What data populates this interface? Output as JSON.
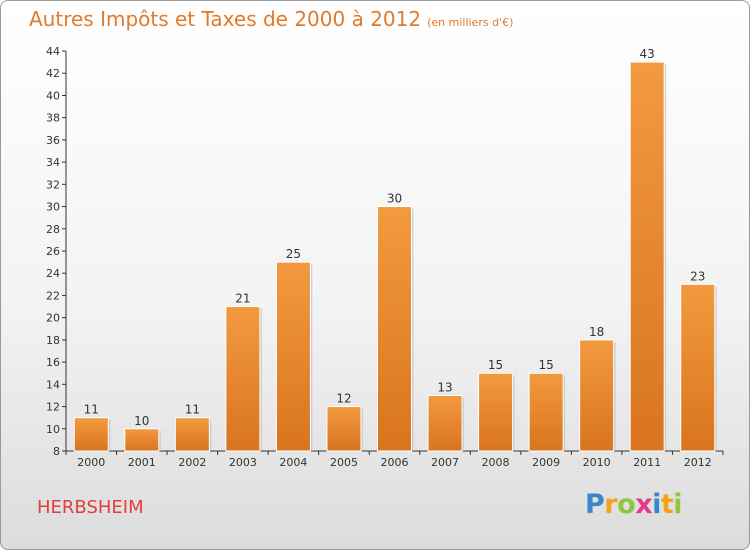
{
  "header": {
    "title": "Autres Impôts et Taxes de 2000 à 2012",
    "subtitle": "(en milliers d'€)"
  },
  "footer": {
    "commune": "HERBSHEIM"
  },
  "logo": {
    "letters": [
      "P",
      "r",
      "o",
      "x",
      "i",
      "t",
      "i"
    ],
    "colors": [
      "#3a86c8",
      "#f4a21a",
      "#8dc63f",
      "#e43a8c",
      "#3a86c8",
      "#f4a21a",
      "#8dc63f"
    ]
  },
  "colors": {
    "bar": "#f29a3f",
    "bar_dark": "#d9741f",
    "title": "#e07a2c",
    "commune": "#e03f3f"
  },
  "chart_data": {
    "type": "bar",
    "title": "Autres Impôts et Taxes de 2000 à 2012",
    "subtitle": "(en milliers d'€)",
    "categories": [
      "2000",
      "2001",
      "2002",
      "2003",
      "2004",
      "2005",
      "2006",
      "2007",
      "2008",
      "2009",
      "2010",
      "2011",
      "2012"
    ],
    "values": [
      11,
      10,
      11,
      21,
      25,
      12,
      30,
      13,
      15,
      15,
      18,
      43,
      23
    ],
    "ylim": [
      8,
      44
    ],
    "yticks": [
      8,
      10,
      12,
      14,
      16,
      18,
      20,
      22,
      24,
      26,
      28,
      30,
      32,
      34,
      36,
      38,
      40,
      42,
      44
    ],
    "grid": false,
    "legend": "none"
  }
}
